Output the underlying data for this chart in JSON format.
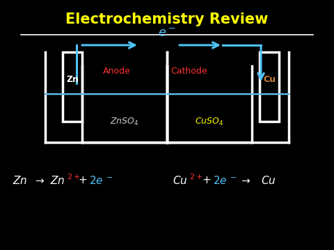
{
  "title": "Electrochemistry Review",
  "title_color": "#FFFF00",
  "background_color": "#000000",
  "wire_color": "#4FC3F7",
  "electrode_color": "#FFFFFF",
  "beaker_color": "#FFFFFF",
  "solution_color": "#5BB8E8",
  "anode_label": "Anode",
  "cathode_label": "Cathode",
  "anode_label_color": "#FF3333",
  "cathode_label_color": "#FF3333",
  "zn_color": "#FFFFFF",
  "cu_color": "#CD8540",
  "znso4_color": "#CCCCCC",
  "cuso4_color": "#FFFF00",
  "electron_label_color": "#4FC3F7",
  "line_color": "#FFFFFF",
  "rxn_white": "#FFFFFF",
  "rxn_red": "#FF3333",
  "rxn_blue": "#4FC3F7"
}
